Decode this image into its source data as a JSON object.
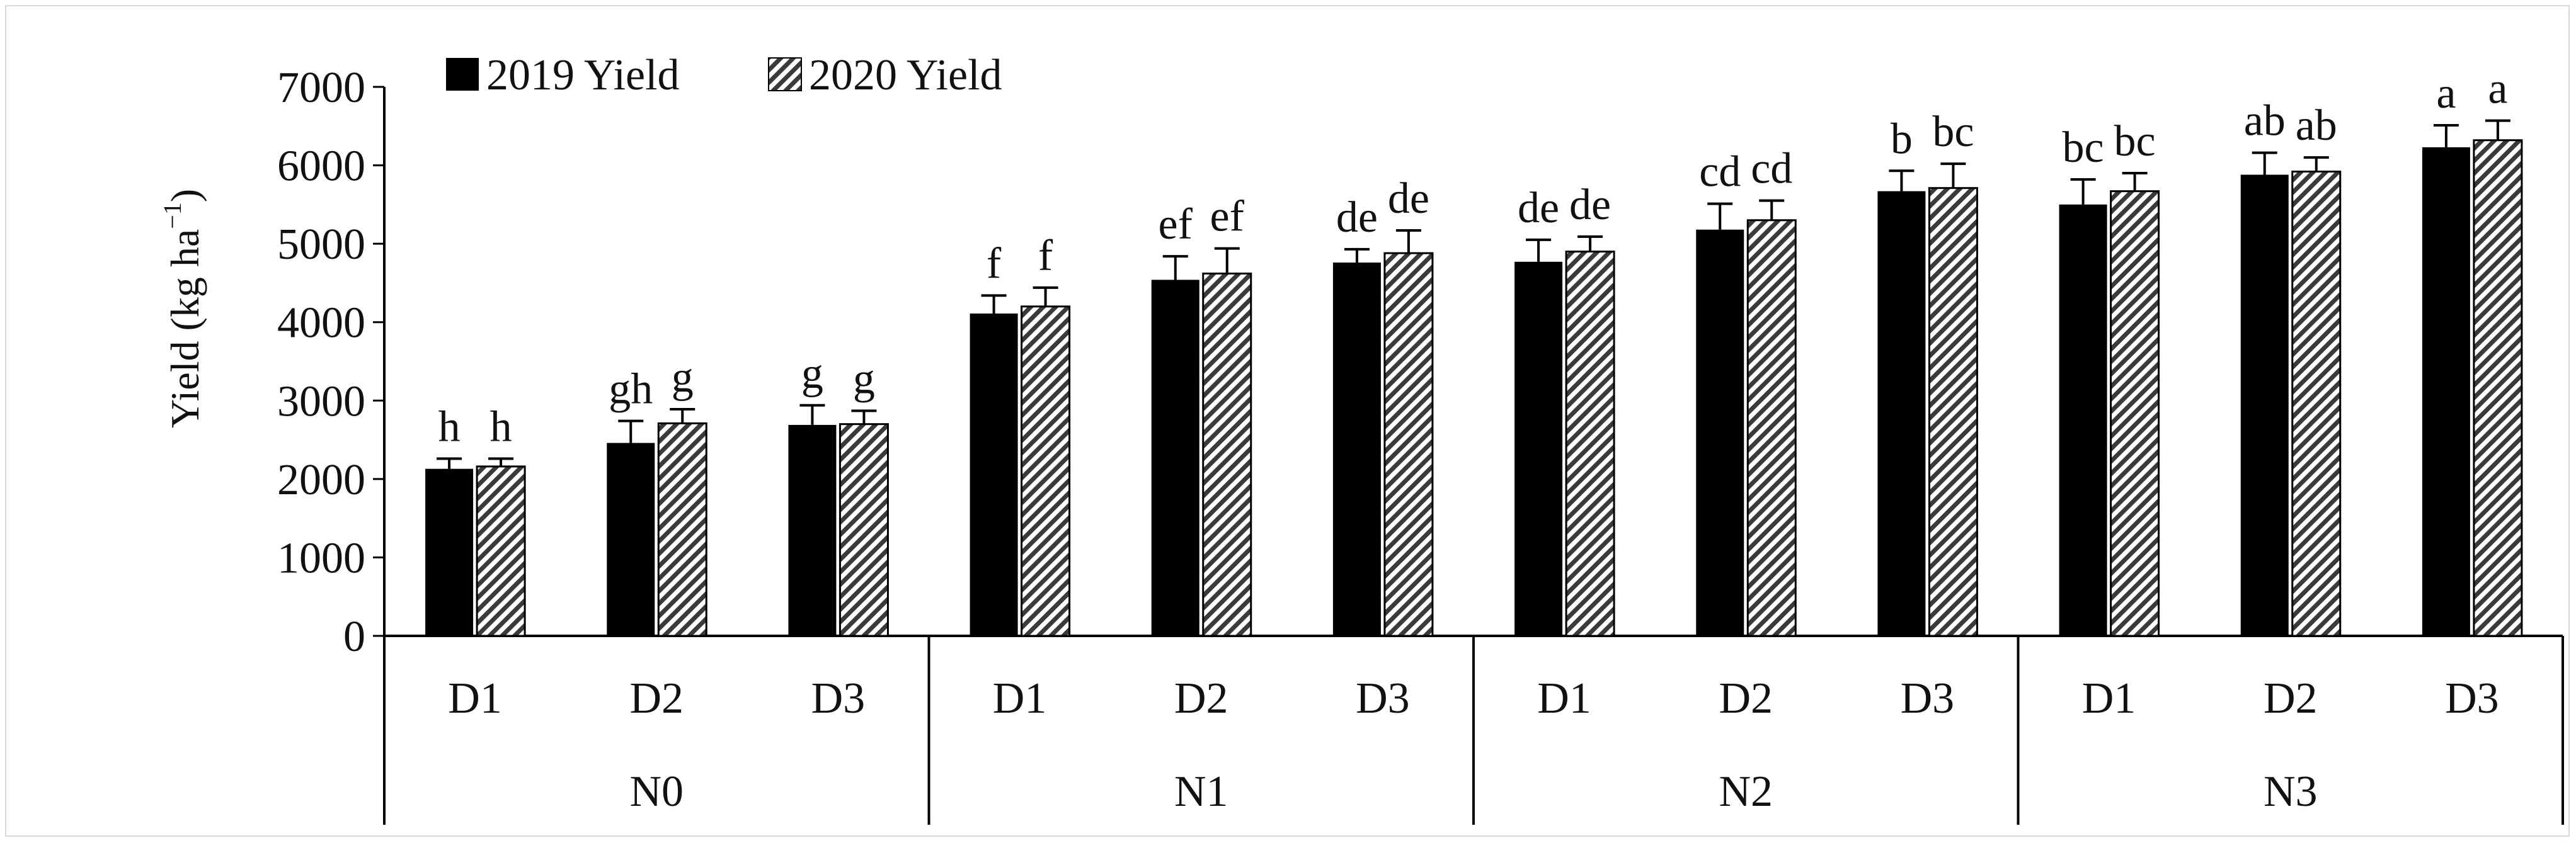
{
  "chart_data": {
    "type": "bar",
    "ylabel_main": "Yield (kg ha",
    "ylabel_sup": "−1",
    "ylabel_close": ")",
    "ylim": [
      0,
      7000
    ],
    "yticks": [
      0,
      1000,
      2000,
      3000,
      4000,
      5000,
      6000,
      7000
    ],
    "groups": [
      "N0",
      "N1",
      "N2",
      "N3"
    ],
    "subcategories": [
      "D1",
      "D2",
      "D3"
    ],
    "categories": [
      "N0-D1",
      "N0-D2",
      "N0-D3",
      "N1-D1",
      "N1-D2",
      "N1-D3",
      "N2-D1",
      "N2-D2",
      "N2-D3",
      "N3-D1",
      "N3-D2",
      "N3-D3"
    ],
    "series": [
      {
        "name": "2019 Yield",
        "color": "#000000",
        "pattern": "solid",
        "values": [
          2130,
          2460,
          2690,
          4110,
          4540,
          4760,
          4770,
          5180,
          5670,
          5500,
          5880,
          6230
        ],
        "errors": [
          130,
          280,
          250,
          230,
          300,
          170,
          280,
          330,
          260,
          320,
          280,
          280
        ],
        "letters": [
          "h",
          "gh",
          "g",
          "f",
          "ef",
          "de",
          "de",
          "cd",
          "b",
          "bc",
          "ab",
          "a"
        ]
      },
      {
        "name": "2020 Yield",
        "color": "#ffffff",
        "pattern": "hatched",
        "values": [
          2160,
          2710,
          2700,
          4200,
          4620,
          4880,
          4900,
          5300,
          5710,
          5670,
          5920,
          6320
        ],
        "errors": [
          100,
          180,
          170,
          240,
          320,
          290,
          190,
          250,
          310,
          230,
          180,
          250
        ],
        "letters": [
          "h",
          "g",
          "g",
          "f",
          "ef",
          "de",
          "de",
          "cd",
          "bc",
          "bc",
          "ab",
          "a"
        ]
      }
    ],
    "legend_position": "top-left",
    "grid": false
  }
}
